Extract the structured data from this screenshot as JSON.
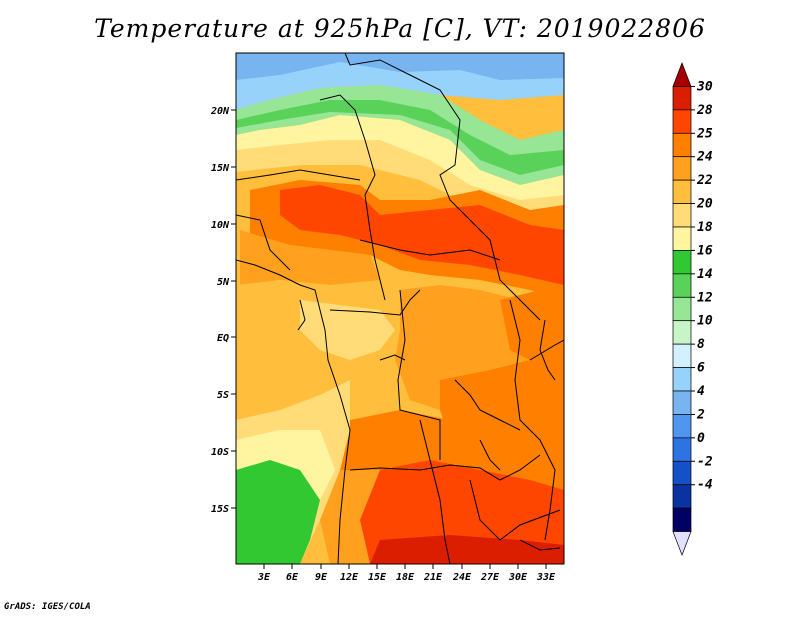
{
  "title": "Temperature at 925hPa [C], VT: 2019022806",
  "credit": "GrADS: IGES/COLA",
  "lat_ticks": [
    "20N",
    "15N",
    "10N",
    "5N",
    "EQ",
    "5S",
    "10S",
    "15S"
  ],
  "lon_ticks": [
    "3E",
    "6E",
    "9E",
    "12E",
    "15E",
    "18E",
    "21E",
    "24E",
    "27E",
    "30E",
    "33E"
  ],
  "colorbar": {
    "labels": [
      "30",
      "28",
      "25",
      "24",
      "22",
      "20",
      "18",
      "16",
      "14",
      "12",
      "10",
      "8",
      "6",
      "4",
      "2",
      "0",
      "-2",
      "-4"
    ],
    "colors": [
      "#a50000",
      "#dc1e00",
      "#ff4600",
      "#ff7f00",
      "#ffa01e",
      "#ffbe3c",
      "#ffdc78",
      "#fff5a0",
      "#32c832",
      "#5ad25a",
      "#96e696",
      "#c8f5c8",
      "#d2f0ff",
      "#96d2fa",
      "#78b4f0",
      "#5096f0",
      "#2d73e1",
      "#1450c8",
      "#0a32a0",
      "#000064",
      "#e1e1ff"
    ]
  }
}
